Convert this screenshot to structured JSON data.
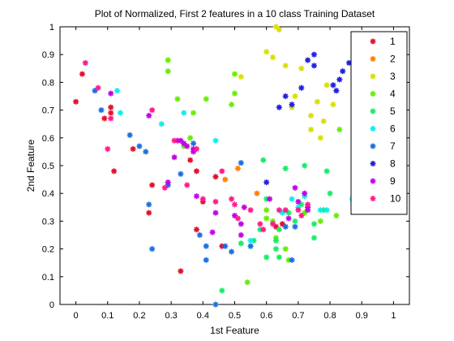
{
  "chart_data": {
    "type": "scatter",
    "title": "Plot of Normalized, First 2 features in a 10 class Training Dataset",
    "xlabel": "1st Feature",
    "ylabel": "2nd Feature",
    "xlim": [
      -0.05,
      1.05
    ],
    "ylim": [
      0,
      1
    ],
    "x_ticks": [
      "0",
      "0.1",
      "0.2",
      "0.3",
      "0.4",
      "0.5",
      "0.6",
      "0.7",
      "0.8",
      "0.9",
      "1"
    ],
    "y_ticks": [
      "0",
      "0.1",
      "0.2",
      "0.3",
      "0.4",
      "0.5",
      "0.6",
      "0.7",
      "0.8",
      "0.9",
      "1"
    ],
    "grid": false,
    "legend_position": "top-right",
    "series": [
      {
        "name": "1",
        "color": "#e0102a",
        "points": [
          [
            0.0,
            0.73
          ],
          [
            0.02,
            0.83
          ],
          [
            0.09,
            0.67
          ],
          [
            0.11,
            0.71
          ],
          [
            0.11,
            0.69
          ],
          [
            0.12,
            0.48
          ],
          [
            0.18,
            0.56
          ],
          [
            0.23,
            0.33
          ],
          [
            0.24,
            0.43
          ],
          [
            0.33,
            0.12
          ],
          [
            0.36,
            0.52
          ],
          [
            0.38,
            0.27
          ],
          [
            0.38,
            0.48
          ],
          [
            0.4,
            0.37
          ],
          [
            0.44,
            0.46
          ],
          [
            0.46,
            0.21
          ],
          [
            0.63,
            0.28
          ],
          [
            0.65,
            0.29
          ]
        ]
      },
      {
        "name": "2",
        "color": "#ff8000",
        "points": [
          [
            0.47,
            0.45
          ],
          [
            0.51,
            0.49
          ],
          [
            0.57,
            0.4
          ],
          [
            0.89,
            0.55
          ]
        ]
      },
      {
        "name": "3",
        "color": "#d8e000",
        "points": [
          [
            0.52,
            0.82
          ],
          [
            0.6,
            0.91
          ],
          [
            0.62,
            0.89
          ],
          [
            0.63,
            1.0
          ],
          [
            0.64,
            0.99
          ],
          [
            0.66,
            0.86
          ],
          [
            0.68,
            0.71
          ],
          [
            0.69,
            0.75
          ],
          [
            0.71,
            0.85
          ],
          [
            0.74,
            0.63
          ],
          [
            0.76,
            0.73
          ],
          [
            0.77,
            0.6
          ],
          [
            0.78,
            0.66
          ],
          [
            0.79,
            0.79
          ],
          [
            0.81,
            0.72
          ],
          [
            0.74,
            0.68
          ]
        ]
      },
      {
        "name": "4",
        "color": "#66ee00",
        "points": [
          [
            0.29,
            0.88
          ],
          [
            0.29,
            0.84
          ],
          [
            0.32,
            0.74
          ],
          [
            0.34,
            0.57
          ],
          [
            0.36,
            0.6
          ],
          [
            0.37,
            0.69
          ],
          [
            0.41,
            0.74
          ],
          [
            0.5,
            0.76
          ],
          [
            0.49,
            0.72
          ],
          [
            0.5,
            0.83
          ],
          [
            0.52,
            0.22
          ],
          [
            0.54,
            0.08
          ],
          [
            0.6,
            0.34
          ],
          [
            0.6,
            0.31
          ],
          [
            0.62,
            0.3
          ],
          [
            0.63,
            0.24
          ],
          [
            0.66,
            0.2
          ],
          [
            0.67,
            0.16
          ],
          [
            0.72,
            0.33
          ],
          [
            0.77,
            0.3
          ],
          [
            0.82,
            0.32
          ],
          [
            0.83,
            0.63
          ]
        ]
      },
      {
        "name": "5",
        "color": "#14ee66",
        "points": [
          [
            0.46,
            0.05
          ],
          [
            0.52,
            0.22
          ],
          [
            0.56,
            0.23
          ],
          [
            0.58,
            0.27
          ],
          [
            0.59,
            0.52
          ],
          [
            0.6,
            0.38
          ],
          [
            0.6,
            0.17
          ],
          [
            0.63,
            0.23
          ],
          [
            0.63,
            0.2
          ],
          [
            0.64,
            0.17
          ],
          [
            0.64,
            0.27
          ],
          [
            0.66,
            0.49
          ],
          [
            0.67,
            0.33
          ],
          [
            0.69,
            0.3
          ],
          [
            0.71,
            0.36
          ],
          [
            0.72,
            0.5
          ],
          [
            0.75,
            0.29
          ],
          [
            0.75,
            0.24
          ],
          [
            0.78,
            0.34
          ],
          [
            0.79,
            0.48
          ],
          [
            0.8,
            0.4
          ]
        ]
      },
      {
        "name": "6",
        "color": "#10ecec",
        "points": [
          [
            0.13,
            0.77
          ],
          [
            0.14,
            0.69
          ],
          [
            0.27,
            0.65
          ],
          [
            0.34,
            0.69
          ],
          [
            0.44,
            0.59
          ],
          [
            0.55,
            0.23
          ],
          [
            0.65,
            0.33
          ],
          [
            0.68,
            0.38
          ],
          [
            0.7,
            0.35
          ],
          [
            0.72,
            0.39
          ],
          [
            0.77,
            0.34
          ],
          [
            0.79,
            0.34
          ],
          [
            0.87,
            0.38
          ]
        ]
      },
      {
        "name": "7",
        "color": "#1a6fe0",
        "points": [
          [
            0.06,
            0.77
          ],
          [
            0.08,
            0.7
          ],
          [
            0.17,
            0.61
          ],
          [
            0.2,
            0.57
          ],
          [
            0.22,
            0.55
          ],
          [
            0.23,
            0.36
          ],
          [
            0.24,
            0.2
          ],
          [
            0.29,
            0.43
          ],
          [
            0.33,
            0.47
          ],
          [
            0.37,
            0.58
          ],
          [
            0.39,
            0.25
          ],
          [
            0.41,
            0.16
          ],
          [
            0.41,
            0.21
          ],
          [
            0.44,
            0.0
          ],
          [
            0.47,
            0.21
          ],
          [
            0.49,
            0.19
          ],
          [
            0.52,
            0.51
          ],
          [
            0.55,
            0.21
          ],
          [
            0.69,
            0.28
          ],
          [
            0.66,
            0.28
          ],
          [
            0.68,
            0.16
          ]
        ]
      },
      {
        "name": "8",
        "color": "#2020e0",
        "points": [
          [
            0.6,
            0.44
          ],
          [
            0.64,
            0.71
          ],
          [
            0.66,
            0.75
          ],
          [
            0.68,
            0.72
          ],
          [
            0.71,
            0.78
          ],
          [
            0.73,
            0.88
          ],
          [
            0.75,
            0.86
          ],
          [
            0.75,
            0.9
          ],
          [
            0.81,
            0.79
          ],
          [
            0.82,
            0.77
          ],
          [
            0.83,
            0.81
          ],
          [
            0.84,
            0.84
          ],
          [
            0.86,
            0.87
          ],
          [
            0.88,
            0.9
          ]
        ]
      },
      {
        "name": "9",
        "color": "#c000e8",
        "points": [
          [
            0.11,
            0.76
          ],
          [
            0.23,
            0.68
          ],
          [
            0.29,
            0.44
          ],
          [
            0.31,
            0.53
          ],
          [
            0.32,
            0.59
          ],
          [
            0.33,
            0.59
          ],
          [
            0.34,
            0.58
          ],
          [
            0.35,
            0.57
          ],
          [
            0.37,
            0.55
          ],
          [
            0.37,
            0.56
          ],
          [
            0.38,
            0.39
          ],
          [
            0.43,
            0.26
          ],
          [
            0.44,
            0.33
          ],
          [
            0.5,
            0.32
          ],
          [
            0.52,
            0.29
          ],
          [
            0.52,
            0.25
          ],
          [
            0.53,
            0.35
          ],
          [
            0.61,
            0.38
          ],
          [
            0.67,
            0.31
          ],
          [
            0.69,
            0.42
          ],
          [
            0.7,
            0.37
          ],
          [
            0.72,
            0.4
          ],
          [
            0.73,
            0.35
          ],
          [
            0.73,
            0.34
          ]
        ]
      },
      {
        "name": "10",
        "color": "#ff1a8c",
        "points": [
          [
            0.03,
            0.87
          ],
          [
            0.07,
            0.78
          ],
          [
            0.1,
            0.56
          ],
          [
            0.11,
            0.67
          ],
          [
            0.24,
            0.7
          ],
          [
            0.28,
            0.42
          ],
          [
            0.31,
            0.59
          ],
          [
            0.35,
            0.43
          ],
          [
            0.38,
            0.56
          ],
          [
            0.4,
            0.38
          ],
          [
            0.44,
            0.37
          ],
          [
            0.46,
            0.48
          ],
          [
            0.49,
            0.38
          ],
          [
            0.5,
            0.36
          ],
          [
            0.51,
            0.31
          ],
          [
            0.55,
            0.34
          ],
          [
            0.58,
            0.29
          ],
          [
            0.59,
            0.27
          ],
          [
            0.62,
            0.29
          ],
          [
            0.64,
            0.34
          ],
          [
            0.66,
            0.34
          ],
          [
            0.7,
            0.34
          ],
          [
            0.71,
            0.32
          ],
          [
            0.73,
            0.36
          ]
        ]
      }
    ]
  }
}
